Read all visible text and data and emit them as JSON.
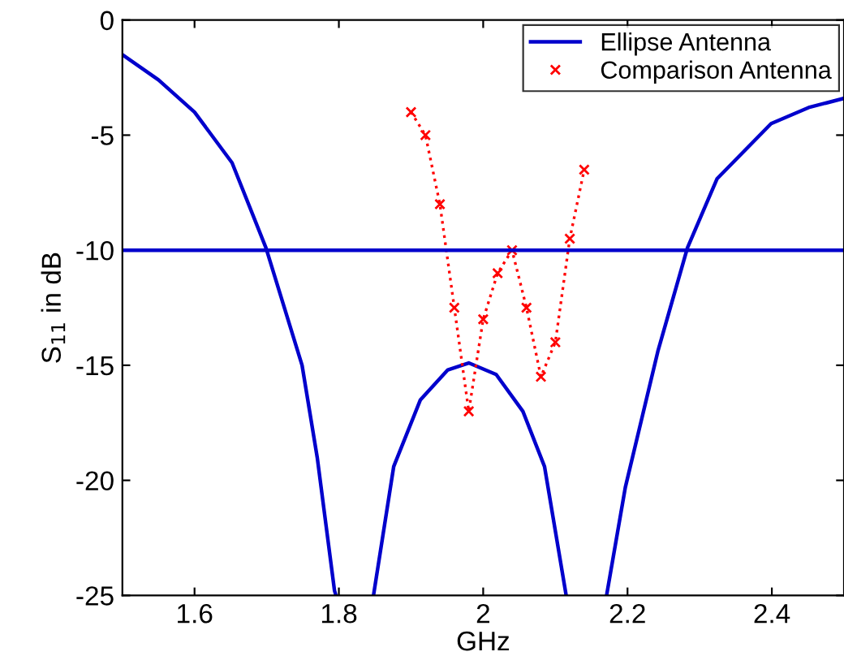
{
  "chart_data": {
    "type": "line",
    "xlabel": "GHz",
    "ylabel": "S$_{11}$ in dB",
    "xlim": [
      1.5,
      2.5
    ],
    "ylim": [
      -25,
      0
    ],
    "xticks": [
      1.6,
      1.8,
      2,
      2.2,
      2.4
    ],
    "yticks": [
      -25,
      -20,
      -15,
      -10,
      -5,
      0
    ],
    "grid": false,
    "legend": "top right",
    "series": [
      {
        "name": "Ellipse Antenna",
        "color": "#0000cc",
        "line_style": "solid",
        "marker": "none",
        "x": [
          1.5,
          1.55,
          1.6,
          1.652,
          1.699,
          1.749,
          1.77,
          1.794,
          1.796,
          null,
          1.848,
          1.876,
          1.913,
          1.951,
          1.98,
          2.018,
          2.055,
          2.085,
          2.115,
          null,
          2.171,
          2.197,
          2.242,
          2.283,
          2.324,
          2.399,
          2.451,
          2.5
        ],
        "values": [
          -1.5,
          -2.6,
          -4,
          -6.2,
          -9.9,
          -15,
          -19,
          -24.8,
          -25,
          null,
          -25,
          -19.4,
          -16.5,
          -15.2,
          -14.9,
          -15.4,
          -17,
          -19.4,
          -25,
          null,
          -25,
          -20.3,
          -14.4,
          -9.9,
          -6.9,
          -4.5,
          -3.8,
          -3.4
        ]
      },
      {
        "name": "Comparison Antenna",
        "color": "#ff0000",
        "line_style": "dotted",
        "marker": "cross",
        "x": [
          1.9,
          1.92,
          1.94,
          1.96,
          1.98,
          2.0,
          2.02,
          2.04,
          2.06,
          2.08,
          2.1,
          2.12,
          2.14
        ],
        "values": [
          -4,
          -5,
          -8,
          -12.5,
          -17,
          -13,
          -11,
          -10,
          -12.5,
          -15.5,
          -14,
          -9.5,
          -6.5
        ]
      }
    ],
    "ref_lines": [
      {
        "axis": "y",
        "value": -10,
        "color": "#0000cc",
        "line_style": "solid"
      }
    ]
  }
}
